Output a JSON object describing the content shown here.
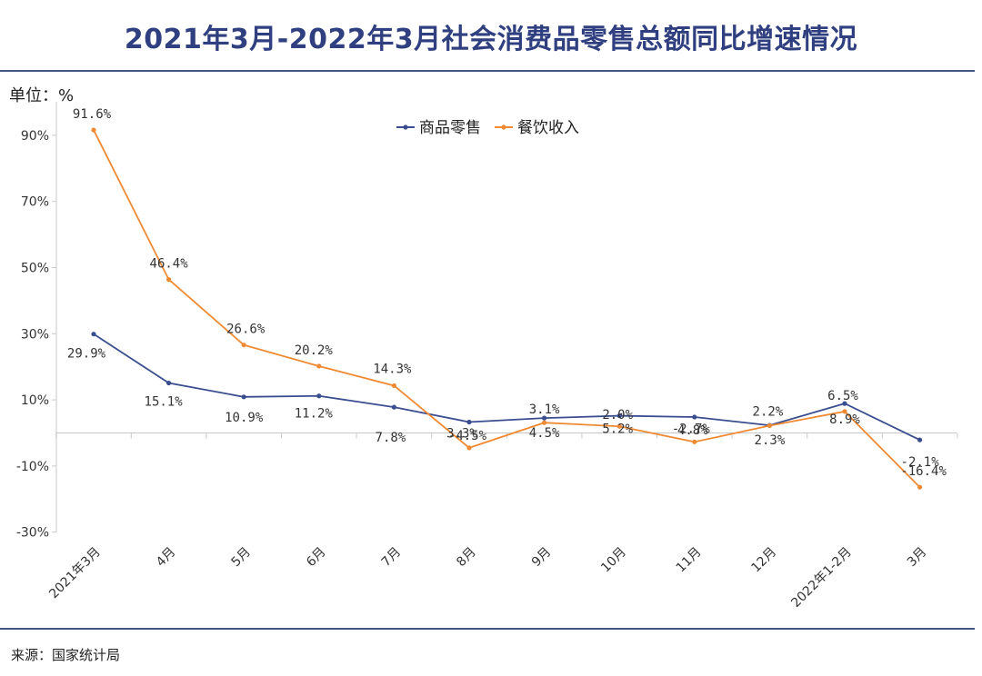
{
  "title": "2021年3月-2022年3月社会消费品零售总额同比增速情况",
  "unit_label": "单位：%",
  "source": "来源：国家统计局",
  "colors": {
    "retail": "#3a4d8f",
    "catering": "#ef8a33",
    "title": "#2f3f7f"
  },
  "chart_data": {
    "type": "line",
    "title": "2021年3月-2022年3月社会消费品零售总额同比增速情况",
    "xlabel": "",
    "ylabel": "单位：%",
    "categories": [
      "2021年3月",
      "4月",
      "5月",
      "6月",
      "7月",
      "8月",
      "9月",
      "10月",
      "11月",
      "12月",
      "2022年1-2月",
      "3月"
    ],
    "yticks": [
      "90%",
      "70%",
      "50%",
      "30%",
      "10%",
      "-10%",
      "-30%"
    ],
    "ytick_values": [
      90,
      70,
      50,
      30,
      10,
      -10,
      -30
    ],
    "ylim": [
      -30,
      100
    ],
    "legend_position": "top-center",
    "grid": false,
    "series": [
      {
        "name": "商品零售",
        "values": [
          29.9,
          15.1,
          10.9,
          11.2,
          7.8,
          3.3,
          4.5,
          5.2,
          4.8,
          2.3,
          8.9,
          -2.1
        ],
        "labels": [
          "29.9%",
          "15.1%",
          "10.9%",
          "11.2%",
          "7.8%",
          "3.3%",
          "4.5%",
          "5.2%",
          "4.8%",
          "2.3%",
          "8.9%",
          "-2.1%"
        ]
      },
      {
        "name": "餐饮收入",
        "values": [
          91.6,
          46.4,
          26.6,
          20.2,
          14.3,
          -4.5,
          3.1,
          2.0,
          -2.7,
          2.2,
          6.5,
          -16.4
        ],
        "labels": [
          "91.6%",
          "46.4%",
          "26.6%",
          "20.2%",
          "14.3%",
          "-4.5%",
          "3.1%",
          "2.0%",
          "-2.7%",
          "2.2%",
          "6.5%",
          "-16.4%"
        ]
      }
    ]
  }
}
